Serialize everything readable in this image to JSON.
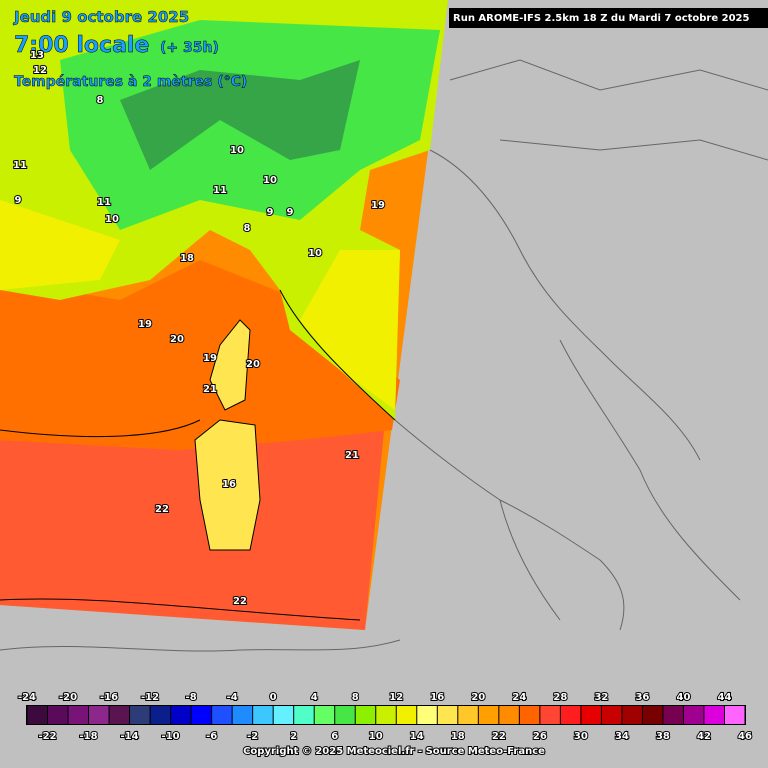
{
  "header": {
    "date": "Jeudi 9 octobre 2025",
    "time": "7:00 locale",
    "lead": "(+ 35h)",
    "parameter": "Températures à 2 mètres (°C)",
    "run": "Run AROME-IFS 2.5km 18 Z du Mardi 7 octobre 2025"
  },
  "map_labels": [
    11,
    13,
    12,
    11,
    10,
    9,
    9,
    10,
    11,
    8,
    9,
    10,
    8,
    10,
    18,
    19,
    19,
    20,
    19,
    20,
    21,
    21,
    22,
    22,
    16
  ],
  "legend": {
    "ticks": [
      -24,
      -22,
      -20,
      -18,
      -16,
      -14,
      -12,
      -10,
      -8,
      -6,
      -4,
      -2,
      0,
      2,
      4,
      6,
      8,
      10,
      12,
      14,
      16,
      18,
      20,
      22,
      24,
      26,
      28,
      30,
      32,
      34,
      36,
      38,
      40,
      42,
      44,
      46
    ],
    "colors": [
      "#3c0a3c",
      "#5a0a5a",
      "#781478",
      "#8c288c",
      "#5a1450",
      "#2d3c78",
      "#0a1e8c",
      "#0000c8",
      "#0000ff",
      "#1e50ff",
      "#1e8cff",
      "#3cc8ff",
      "#64f0ff",
      "#50ffc8",
      "#64ff64",
      "#46e646",
      "#8cf000",
      "#c8f000",
      "#f0f000",
      "#ffff78",
      "#ffe650",
      "#ffc828",
      "#ffa000",
      "#ff8c00",
      "#ff6400",
      "#ff4632",
      "#ff1e1e",
      "#e60000",
      "#c80000",
      "#a00000",
      "#780000",
      "#780050",
      "#a00090",
      "#dc00dc",
      "#ff64ff"
    ]
  },
  "footer": {
    "copyright": "Copyright © 2025 Meteociel.fr - Source Meteo-France"
  }
}
